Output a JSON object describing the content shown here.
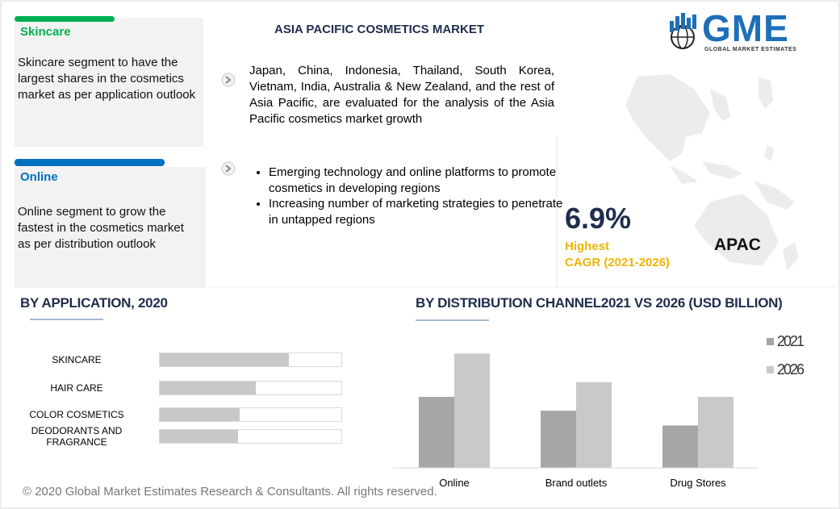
{
  "header": {
    "title": "ASIA PACIFIC COSMETICS MARKET",
    "logo": "GME",
    "logo_subtitle": "GLOBAL MARKET ESTIMATES"
  },
  "highlights": [
    {
      "title": "Skincare",
      "text": "Skincare segment to have the largest shares in the cosmetics market as per application outlook",
      "color": "#00b050"
    },
    {
      "title": "Online",
      "text": "Online segment to grow the fastest in the cosmetics market as per distribution outlook",
      "color": "#0070c0"
    }
  ],
  "scope": "Japan, China, Indonesia, Thailand, South Korea, Vietnam, India, Australia & New Zealand, and the rest of Asia Pacific, are evaluated for the analysis of the Asia Pacific cosmetics market  growth",
  "drivers": [
    "Emerging technology and online platforms to promote cosmetics in developing regions",
    "Increasing number of marketing strategies to penetrate in untapped regions"
  ],
  "cagr": {
    "value": "6.9%",
    "label": "Highest",
    "period": "CAGR (2021-2026)",
    "region": "APAC"
  },
  "chart_data": [
    {
      "type": "hbar",
      "title": "BY APPLICATION, 2020",
      "categories": [
        "SKINCARE",
        "HAIR CARE",
        "COLOR COSMETICS",
        "DEODORANTS AND FRAGRANCE"
      ],
      "values": [
        71,
        53,
        44,
        43
      ],
      "xlim": [
        0,
        100
      ],
      "color": "#c8c8c8"
    },
    {
      "type": "bar",
      "title": "BY DISTRIBUTION CHANNEL2021 VS 2026 (USD BILLION)",
      "categories": [
        "Online",
        "Brand outlets",
        "Drug Stores"
      ],
      "series": [
        {
          "name": "2021",
          "color": "#a6a6a6",
          "values": [
            77,
            62,
            46
          ]
        },
        {
          "name": "2026",
          "color": "#c9c9c9",
          "values": [
            124,
            93,
            77
          ]
        }
      ],
      "ylim": [
        0,
        140
      ]
    }
  ],
  "footer": "© 2020 Global Market Estimates Research & Consultants. All rights reserved."
}
